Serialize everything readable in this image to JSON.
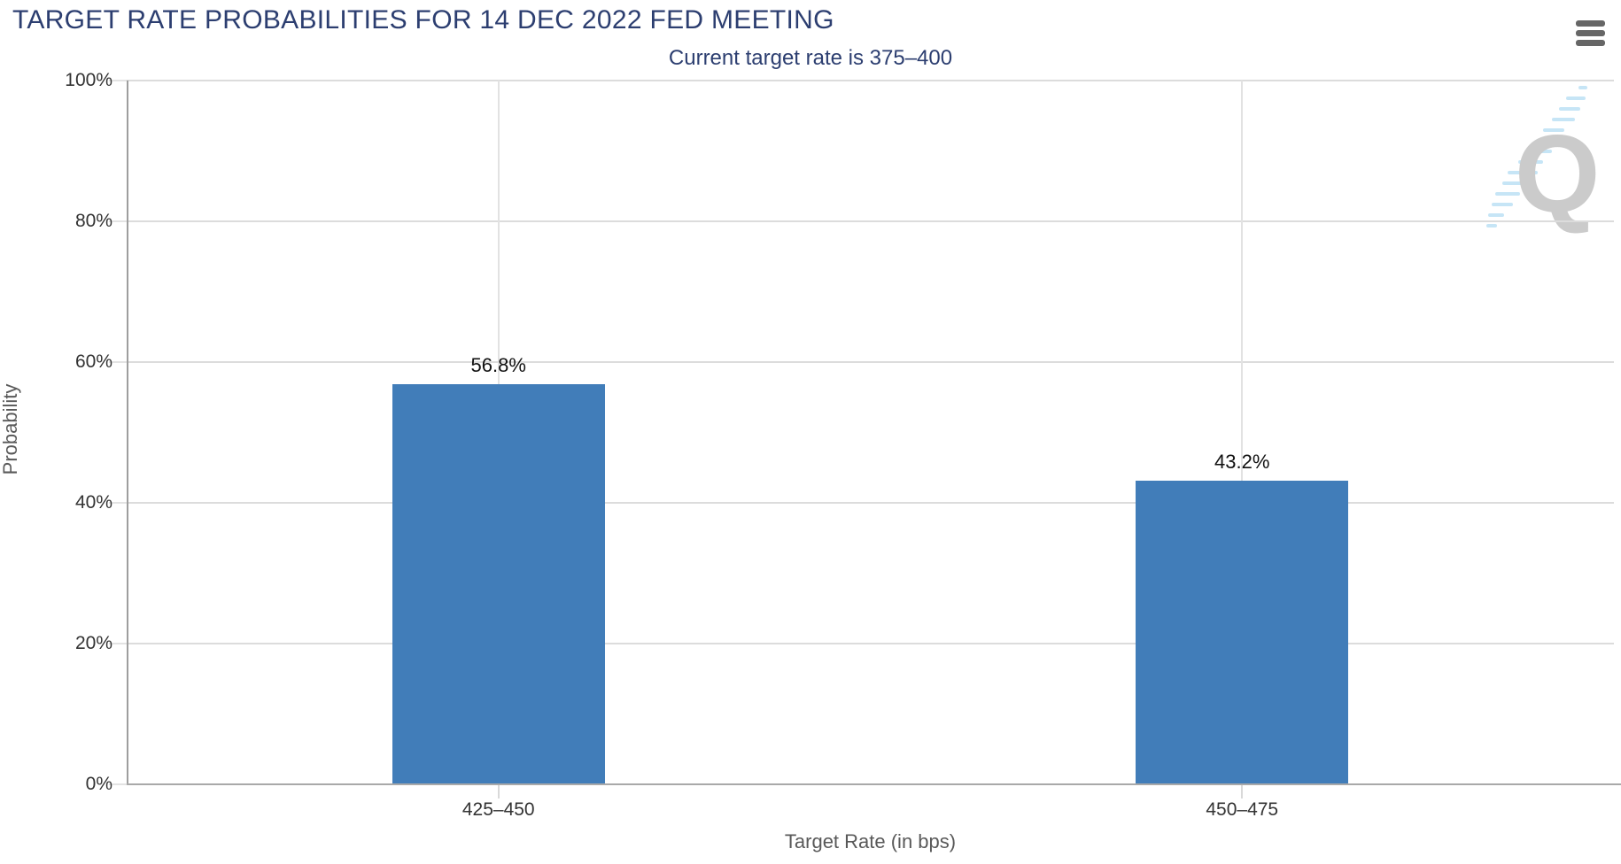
{
  "header": {
    "title": "TARGET RATE PROBABILITIES FOR 14 DEC 2022 FED MEETING",
    "menu_icon": "hamburger-menu-icon"
  },
  "chart_data": {
    "type": "bar",
    "title": "TARGET RATE PROBABILITIES FOR 14 DEC 2022 FED MEETING",
    "subtitle": "Current target rate is 375–400",
    "categories": [
      "425–450",
      "450–475"
    ],
    "values": [
      56.8,
      43.2
    ],
    "value_labels": [
      "56.8%",
      "43.2%"
    ],
    "xlabel": "Target Rate (in bps)",
    "ylabel": "Probability",
    "ylim": [
      0,
      100
    ],
    "yticks": [
      0,
      20,
      40,
      60,
      80,
      100
    ],
    "ytick_labels": [
      "0%",
      "20%",
      "40%",
      "60%",
      "80%",
      "100%"
    ],
    "grid": true,
    "legend": false,
    "watermark_letter": "Q"
  },
  "colors": {
    "title_navy": "#2c3e70",
    "bar_blue": "#417db9",
    "gridline": "#dcdcdc",
    "axis_line": "#9e9e9e",
    "tick_label": "#333333",
    "axis_title": "#595959",
    "data_label": "#111111",
    "menu_icon": "#666666",
    "watermark_gray": "#c9c9c9",
    "watermark_blue": "#c3e4f6"
  }
}
